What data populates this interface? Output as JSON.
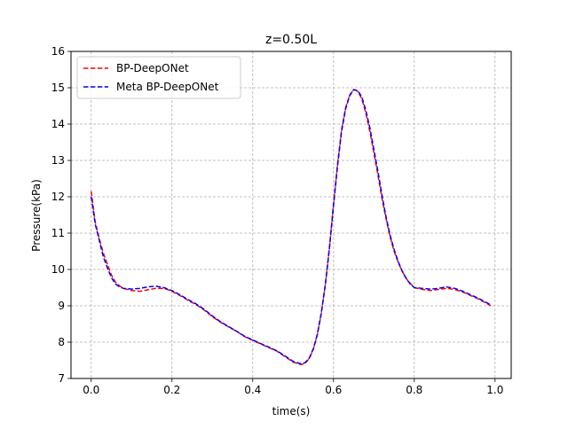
{
  "chart_data": {
    "type": "line",
    "title": "z=0.50L",
    "xlabel": "time(s)",
    "ylabel": "Pressure(kPa)",
    "xlim": [
      -0.05,
      1.04
    ],
    "ylim": [
      7,
      16
    ],
    "xticks": [
      0.0,
      0.2,
      0.4,
      0.6,
      0.8,
      1.0
    ],
    "xtick_labels": [
      "0.0",
      "0.2",
      "0.4",
      "0.6",
      "0.8",
      "1.0"
    ],
    "yticks": [
      7,
      8,
      9,
      10,
      11,
      12,
      13,
      14,
      15,
      16
    ],
    "ytick_labels": [
      "7",
      "8",
      "9",
      "10",
      "11",
      "12",
      "13",
      "14",
      "15",
      "16"
    ],
    "grid": true,
    "legend_position": "upper-left",
    "series": [
      {
        "name": "BP-DeepONet",
        "color": "#ff0000",
        "style": "dashed",
        "x": [
          0.0,
          0.01,
          0.02,
          0.03,
          0.04,
          0.05,
          0.06,
          0.07,
          0.08,
          0.1,
          0.12,
          0.14,
          0.16,
          0.18,
          0.2,
          0.22,
          0.24,
          0.26,
          0.28,
          0.3,
          0.32,
          0.34,
          0.36,
          0.38,
          0.4,
          0.42,
          0.44,
          0.46,
          0.48,
          0.5,
          0.52,
          0.53,
          0.54,
          0.55,
          0.56,
          0.57,
          0.58,
          0.59,
          0.6,
          0.61,
          0.62,
          0.63,
          0.64,
          0.65,
          0.66,
          0.67,
          0.68,
          0.69,
          0.7,
          0.71,
          0.72,
          0.73,
          0.74,
          0.75,
          0.76,
          0.77,
          0.78,
          0.79,
          0.8,
          0.82,
          0.84,
          0.86,
          0.88,
          0.9,
          0.92,
          0.94,
          0.96,
          0.98,
          0.99
        ],
        "y": [
          12.15,
          11.3,
          10.85,
          10.45,
          10.15,
          9.85,
          9.65,
          9.55,
          9.48,
          9.42,
          9.4,
          9.44,
          9.48,
          9.48,
          9.4,
          9.28,
          9.15,
          9.03,
          8.88,
          8.7,
          8.55,
          8.42,
          8.3,
          8.15,
          8.05,
          7.95,
          7.85,
          7.75,
          7.6,
          7.45,
          7.38,
          7.42,
          7.55,
          7.8,
          8.2,
          8.8,
          9.6,
          10.6,
          11.8,
          12.9,
          13.85,
          14.45,
          14.8,
          14.95,
          14.9,
          14.7,
          14.3,
          13.8,
          13.2,
          12.6,
          11.95,
          11.4,
          10.9,
          10.5,
          10.2,
          9.95,
          9.75,
          9.62,
          9.5,
          9.45,
          9.42,
          9.45,
          9.48,
          9.45,
          9.38,
          9.28,
          9.18,
          9.06,
          9.0
        ]
      },
      {
        "name": "Meta BP-DeepONet",
        "color": "#0000ff",
        "style": "dashed",
        "x": [
          0.0,
          0.01,
          0.02,
          0.03,
          0.04,
          0.05,
          0.06,
          0.07,
          0.08,
          0.1,
          0.12,
          0.14,
          0.16,
          0.18,
          0.2,
          0.22,
          0.24,
          0.26,
          0.28,
          0.3,
          0.32,
          0.34,
          0.36,
          0.38,
          0.4,
          0.42,
          0.44,
          0.46,
          0.48,
          0.5,
          0.52,
          0.53,
          0.54,
          0.55,
          0.56,
          0.57,
          0.58,
          0.59,
          0.6,
          0.61,
          0.62,
          0.63,
          0.64,
          0.65,
          0.66,
          0.67,
          0.68,
          0.69,
          0.7,
          0.71,
          0.72,
          0.73,
          0.74,
          0.75,
          0.76,
          0.77,
          0.78,
          0.79,
          0.8,
          0.82,
          0.84,
          0.86,
          0.88,
          0.9,
          0.92,
          0.94,
          0.96,
          0.98,
          0.99
        ],
        "y": [
          12.0,
          11.25,
          10.8,
          10.35,
          10.05,
          9.78,
          9.6,
          9.52,
          9.48,
          9.46,
          9.48,
          9.52,
          9.54,
          9.5,
          9.42,
          9.3,
          9.17,
          9.05,
          8.9,
          8.72,
          8.56,
          8.43,
          8.3,
          8.16,
          8.06,
          7.96,
          7.86,
          7.76,
          7.62,
          7.47,
          7.4,
          7.44,
          7.56,
          7.82,
          8.22,
          8.82,
          9.6,
          10.6,
          11.75,
          12.85,
          13.8,
          14.42,
          14.78,
          14.95,
          14.92,
          14.75,
          14.38,
          13.9,
          13.3,
          12.7,
          12.05,
          11.45,
          10.95,
          10.55,
          10.22,
          9.96,
          9.75,
          9.6,
          9.5,
          9.48,
          9.46,
          9.48,
          9.52,
          9.48,
          9.4,
          9.3,
          9.2,
          9.08,
          9.02
        ]
      }
    ]
  }
}
